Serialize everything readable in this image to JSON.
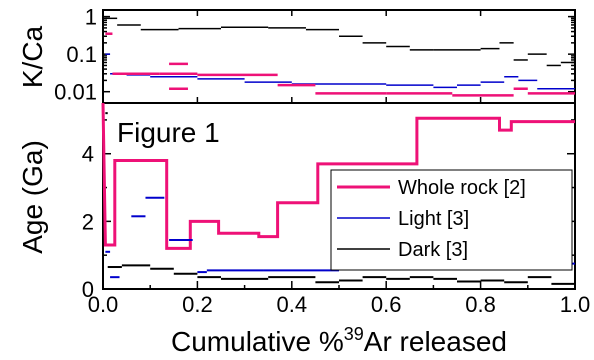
{
  "chart_data": [
    {
      "type": "line",
      "panel": "top",
      "ylabel": "K/Ca",
      "yscale": "log",
      "ylim": [
        0.005,
        1.5
      ],
      "xlim": [
        0,
        1
      ],
      "y_ticks": [
        {
          "value": 1,
          "label": "1"
        },
        {
          "value": 0.1,
          "label": "0.1"
        },
        {
          "value": 0.01,
          "label": "0.01"
        }
      ],
      "series": [
        {
          "name": "Dark [3]",
          "color": "#000000",
          "style": "step-segments",
          "segments": [
            [
              0.005,
              0.03,
              0.9
            ],
            [
              0.03,
              0.08,
              0.6
            ],
            [
              0.08,
              0.16,
              0.45
            ],
            [
              0.16,
              0.25,
              0.48
            ],
            [
              0.25,
              0.35,
              0.52
            ],
            [
              0.35,
              0.43,
              0.5
            ],
            [
              0.43,
              0.5,
              0.45
            ],
            [
              0.5,
              0.55,
              0.3
            ],
            [
              0.55,
              0.6,
              0.2
            ],
            [
              0.6,
              0.65,
              0.16
            ],
            [
              0.65,
              0.7,
              0.13
            ],
            [
              0.7,
              0.8,
              0.13
            ],
            [
              0.8,
              0.84,
              0.14
            ],
            [
              0.84,
              0.87,
              0.2
            ],
            [
              0.87,
              0.9,
              0.07
            ],
            [
              0.9,
              0.94,
              0.1
            ],
            [
              0.94,
              0.97,
              0.05
            ],
            [
              0.97,
              1.0,
              0.06
            ]
          ]
        },
        {
          "name": "Light [3]",
          "color": "#0000cc",
          "style": "step-segments",
          "segments": [
            [
              0.005,
              0.015,
              0.1
            ],
            [
              0.015,
              0.05,
              0.03
            ],
            [
              0.05,
              0.1,
              0.028
            ],
            [
              0.1,
              0.2,
              0.025
            ],
            [
              0.2,
              0.3,
              0.022
            ],
            [
              0.3,
              0.4,
              0.018
            ],
            [
              0.4,
              0.5,
              0.016
            ],
            [
              0.5,
              0.6,
              0.016
            ],
            [
              0.6,
              0.7,
              0.015
            ],
            [
              0.7,
              0.75,
              0.013
            ],
            [
              0.75,
              0.8,
              0.015
            ],
            [
              0.8,
              0.85,
              0.018
            ],
            [
              0.85,
              0.88,
              0.025
            ],
            [
              0.88,
              0.92,
              0.02
            ],
            [
              0.92,
              1.0,
              0.012
            ]
          ]
        },
        {
          "name": "Whole rock [2]",
          "color": "#ee1177",
          "style": "step-segments",
          "segments": [
            [
              0.005,
              0.02,
              0.35
            ],
            [
              0.02,
              0.12,
              0.03
            ],
            [
              0.12,
              0.2,
              0.03
            ],
            [
              0.2,
              0.37,
              0.028
            ],
            [
              0.14,
              0.18,
              0.055
            ],
            [
              0.14,
              0.18,
              0.012
            ],
            [
              0.37,
              0.45,
              0.015
            ],
            [
              0.45,
              0.6,
              0.009
            ],
            [
              0.6,
              0.74,
              0.009
            ],
            [
              0.74,
              0.87,
              0.008
            ],
            [
              0.87,
              0.9,
              0.012
            ],
            [
              0.9,
              1.0,
              0.009
            ]
          ]
        }
      ]
    },
    {
      "type": "line",
      "panel": "bottom",
      "title": "Figure 1",
      "xlabel": "Cumulative %³⁹Ar released",
      "ylabel": "Age (Ga)",
      "xlim": [
        0,
        1
      ],
      "ylim": [
        0,
        5.5
      ],
      "x_ticks": [
        {
          "value": 0.0,
          "label": "0.0"
        },
        {
          "value": 0.2,
          "label": "0.2"
        },
        {
          "value": 0.4,
          "label": "0.4"
        },
        {
          "value": 0.6,
          "label": "0.6"
        },
        {
          "value": 0.8,
          "label": "0.8"
        },
        {
          "value": 1.0,
          "label": "1.0"
        }
      ],
      "y_ticks": [
        {
          "value": 0,
          "label": "0"
        },
        {
          "value": 2,
          "label": "2"
        },
        {
          "value": 4,
          "label": "4"
        }
      ],
      "series": [
        {
          "name": "Whole rock [2]",
          "color": "#ee1177",
          "style": "step-line",
          "points": [
            [
              0.0,
              5.5
            ],
            [
              0.005,
              1.3
            ],
            [
              0.025,
              1.3
            ],
            [
              0.025,
              3.8
            ],
            [
              0.135,
              3.8
            ],
            [
              0.135,
              1.2
            ],
            [
              0.185,
              1.2
            ],
            [
              0.185,
              2.0
            ],
            [
              0.245,
              2.0
            ],
            [
              0.245,
              1.65
            ],
            [
              0.33,
              1.65
            ],
            [
              0.33,
              1.55
            ],
            [
              0.37,
              1.55
            ],
            [
              0.37,
              2.55
            ],
            [
              0.455,
              2.55
            ],
            [
              0.455,
              3.7
            ],
            [
              0.665,
              3.7
            ],
            [
              0.665,
              5.05
            ],
            [
              0.84,
              5.05
            ],
            [
              0.84,
              4.7
            ],
            [
              0.865,
              4.7
            ],
            [
              0.865,
              4.95
            ],
            [
              1.0,
              4.95
            ]
          ]
        },
        {
          "name": "Light [3]",
          "color": "#0000cc",
          "style": "step-segments",
          "segments": [
            [
              0.005,
              0.015,
              1.1
            ],
            [
              0.015,
              0.035,
              0.35
            ],
            [
              0.06,
              0.09,
              2.15
            ],
            [
              0.09,
              0.13,
              2.7
            ],
            [
              0.14,
              0.19,
              1.45
            ],
            [
              0.2,
              0.22,
              0.5
            ],
            [
              0.22,
              0.34,
              0.55
            ],
            [
              0.34,
              0.5,
              0.55
            ],
            [
              0.5,
              0.66,
              0.6
            ],
            [
              0.66,
              0.8,
              0.58
            ],
            [
              0.8,
              0.88,
              0.6
            ],
            [
              0.88,
              0.95,
              0.65
            ],
            [
              0.95,
              1.0,
              0.75
            ]
          ]
        },
        {
          "name": "Dark [3]",
          "color": "#000000",
          "style": "step-segments",
          "segments": [
            [
              0.005,
              0.01,
              5.2
            ],
            [
              0.01,
              0.04,
              0.65
            ],
            [
              0.04,
              0.1,
              0.7
            ],
            [
              0.1,
              0.15,
              0.6
            ],
            [
              0.15,
              0.2,
              0.45
            ],
            [
              0.2,
              0.25,
              0.35
            ],
            [
              0.25,
              0.35,
              0.3
            ],
            [
              0.35,
              0.45,
              0.35
            ],
            [
              0.45,
              0.5,
              0.2
            ],
            [
              0.5,
              0.55,
              0.25
            ],
            [
              0.55,
              0.6,
              0.35
            ],
            [
              0.6,
              0.65,
              0.3
            ],
            [
              0.65,
              0.7,
              0.35
            ],
            [
              0.7,
              0.75,
              0.3
            ],
            [
              0.75,
              0.8,
              0.22
            ],
            [
              0.8,
              0.85,
              0.25
            ],
            [
              0.85,
              0.9,
              0.2
            ],
            [
              0.9,
              0.95,
              0.35
            ],
            [
              0.95,
              1.0,
              0.15
            ]
          ]
        }
      ],
      "legend": {
        "placement": "bottom-right",
        "entries": [
          {
            "label": "Whole rock [2]",
            "color": "#ee1177"
          },
          {
            "label": "Light [3]",
            "color": "#0000cc"
          },
          {
            "label": "Dark [3]",
            "color": "#000000"
          }
        ]
      }
    }
  ]
}
